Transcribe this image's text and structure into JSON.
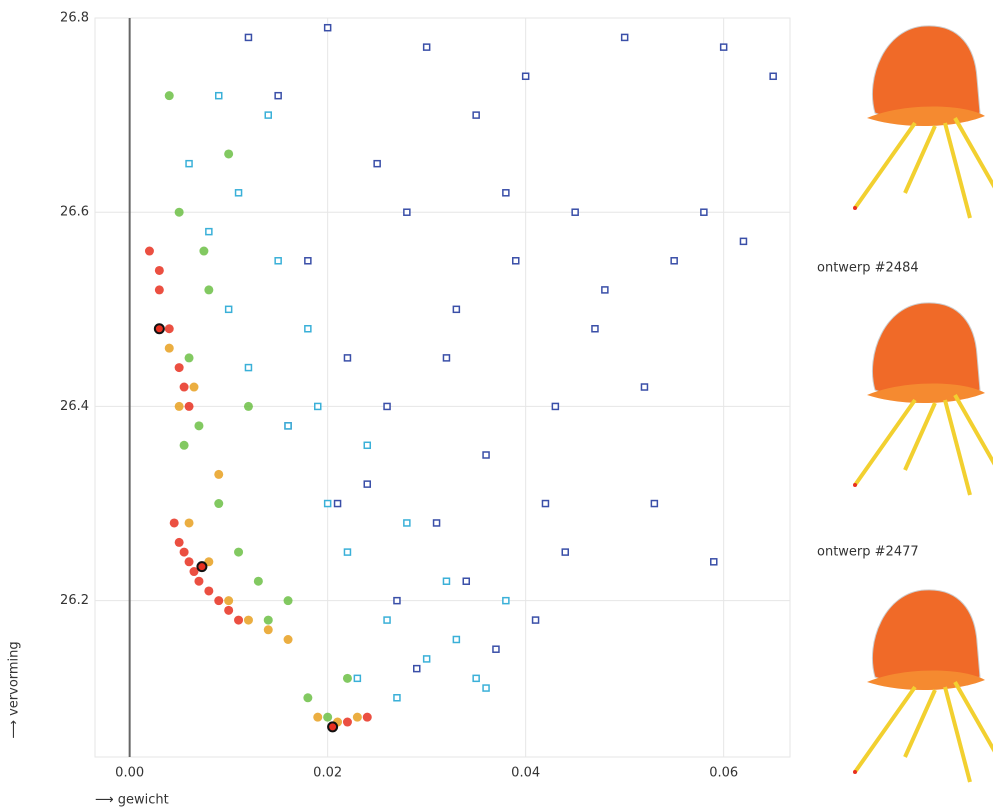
{
  "chart_data": {
    "type": "scatter",
    "x_label": "⟶ gewicht",
    "y_label": "⟶ vervorming",
    "xlim": [
      -0.0035,
      0.0667
    ],
    "ylim": [
      26.039,
      26.8
    ],
    "xticks": [
      {
        "value": 0,
        "label": "0.00"
      },
      {
        "value": 0.02,
        "label": "0.02"
      },
      {
        "value": 0.04,
        "label": "0.04"
      },
      {
        "value": 0.06,
        "label": "0.06"
      }
    ],
    "yticks": [
      26.2,
      26.4,
      26.6,
      26.8
    ],
    "grid": true,
    "series": [
      {
        "color": "#3a4fa8",
        "marker": "square",
        "x": [
          0.012,
          0.015,
          0.02,
          0.025,
          0.03,
          0.035,
          0.04,
          0.045,
          0.05,
          0.055,
          0.06,
          0.065,
          0.018,
          0.022,
          0.028,
          0.033,
          0.038,
          0.043,
          0.048,
          0.052,
          0.058,
          0.062,
          0.016,
          0.024,
          0.031,
          0.036,
          0.042,
          0.047,
          0.053,
          0.059,
          0.027,
          0.034,
          0.041,
          0.029,
          0.037,
          0.044,
          0.021,
          0.026,
          0.032,
          0.039
        ],
        "values": [
          26.78,
          26.72,
          26.79,
          26.65,
          26.77,
          26.7,
          26.74,
          26.6,
          26.78,
          26.55,
          26.77,
          26.74,
          26.55,
          26.45,
          26.6,
          26.5,
          26.62,
          26.4,
          26.52,
          26.42,
          26.6,
          26.57,
          26.38,
          26.32,
          26.28,
          26.35,
          26.3,
          26.48,
          26.3,
          26.24,
          26.2,
          26.22,
          26.18,
          26.13,
          26.15,
          26.25,
          26.3,
          26.4,
          26.45,
          26.55
        ]
      },
      {
        "color": "#3ab0d8",
        "marker": "square",
        "x": [
          0.006,
          0.008,
          0.01,
          0.012,
          0.014,
          0.016,
          0.018,
          0.02,
          0.022,
          0.024,
          0.026,
          0.028,
          0.03,
          0.032,
          0.035,
          0.038,
          0.009,
          0.011,
          0.015,
          0.019,
          0.023,
          0.027,
          0.033,
          0.036
        ],
        "values": [
          26.65,
          26.58,
          26.5,
          26.44,
          26.7,
          26.38,
          26.48,
          26.3,
          26.25,
          26.36,
          26.18,
          26.28,
          26.14,
          26.22,
          26.12,
          26.2,
          26.72,
          26.62,
          26.55,
          26.4,
          26.12,
          26.1,
          26.16,
          26.11
        ]
      },
      {
        "color": "#6cbf45",
        "marker": "circle",
        "x": [
          0.004,
          0.005,
          0.006,
          0.007,
          0.008,
          0.009,
          0.01,
          0.011,
          0.012,
          0.013,
          0.014,
          0.016,
          0.018,
          0.02,
          0.022,
          0.0055,
          0.0075
        ],
        "values": [
          26.72,
          26.6,
          26.45,
          26.38,
          26.52,
          26.3,
          26.66,
          26.25,
          26.4,
          26.22,
          26.18,
          26.2,
          26.1,
          26.08,
          26.12,
          26.36,
          26.56
        ]
      },
      {
        "color": "#e8a020",
        "marker": "circle",
        "x": [
          0.004,
          0.005,
          0.006,
          0.008,
          0.01,
          0.012,
          0.014,
          0.016,
          0.019,
          0.021,
          0.023,
          0.0065,
          0.009
        ],
        "values": [
          26.46,
          26.4,
          26.28,
          26.24,
          26.2,
          26.18,
          26.17,
          26.16,
          26.08,
          26.075,
          26.08,
          26.42,
          26.33
        ]
      },
      {
        "color": "#e83020",
        "marker": "circle",
        "x": [
          0.002,
          0.003,
          0.004,
          0.005,
          0.006,
          0.0045,
          0.005,
          0.0055,
          0.006,
          0.0065,
          0.007,
          0.008,
          0.009,
          0.01,
          0.011,
          0.0205,
          0.022,
          0.024,
          0.003,
          0.0055
        ],
        "values": [
          26.56,
          26.52,
          26.48,
          26.44,
          26.4,
          26.28,
          26.26,
          26.25,
          26.24,
          26.23,
          26.22,
          26.21,
          26.2,
          26.19,
          26.18,
          26.07,
          26.075,
          26.08,
          26.54,
          26.42
        ]
      },
      {
        "color": "#e83020",
        "marker": "highlight",
        "x": [
          0.003,
          0.0073,
          0.0205
        ],
        "values": [
          26.48,
          26.235,
          26.07
        ]
      }
    ]
  },
  "designs": [
    {
      "label": "ontwerp #2484"
    },
    {
      "label": "ontwerp #2477"
    }
  ]
}
